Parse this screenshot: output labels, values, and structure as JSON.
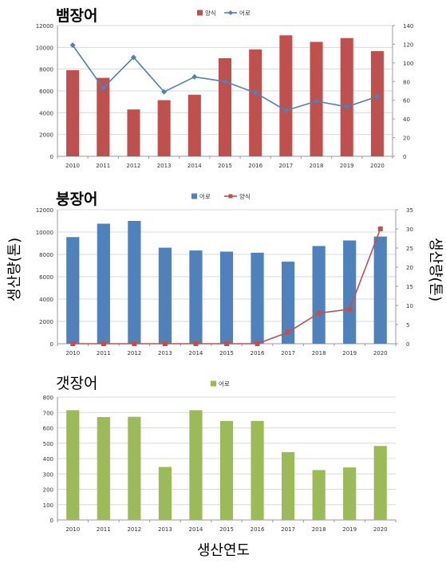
{
  "shared": {
    "y_axis_label": "생산량(톤)",
    "x_axis_label": "생산연도"
  },
  "chart_data": [
    {
      "type": "bar",
      "title": "뱀장어",
      "categories": [
        "2010",
        "2011",
        "2012",
        "2013",
        "2014",
        "2015",
        "2016",
        "2017",
        "2018",
        "2019",
        "2020"
      ],
      "ylim": [
        0,
        12000
      ],
      "yticks": [
        0,
        2000,
        4000,
        6000,
        8000,
        10000,
        12000
      ],
      "y2lim": [
        0,
        140
      ],
      "y2ticks": [
        0,
        20,
        40,
        60,
        80,
        100,
        120,
        140
      ],
      "legend_position": "top",
      "legend_order": [
        "양식",
        "어로"
      ],
      "series": [
        {
          "name": "양식",
          "kind": "bar",
          "axis": "left",
          "color": "#c0504d",
          "values": [
            7900,
            7200,
            4300,
            5150,
            5650,
            9000,
            9800,
            11100,
            10500,
            10850,
            9650
          ]
        },
        {
          "name": "어로",
          "kind": "line",
          "axis": "right",
          "color": "#4f81bd",
          "marker": "diamond",
          "values": [
            119,
            73,
            106,
            69,
            85,
            80,
            68,
            49,
            59,
            53,
            64
          ]
        }
      ]
    },
    {
      "type": "bar",
      "title": "붕장어",
      "categories": [
        "2010",
        "2011",
        "2012",
        "2013",
        "2014",
        "2015",
        "2016",
        "2017",
        "2018",
        "2019",
        "2020"
      ],
      "ylim": [
        0,
        12000
      ],
      "yticks": [
        0,
        2000,
        4000,
        6000,
        8000,
        10000,
        12000
      ],
      "y2lim": [
        0,
        35
      ],
      "y2ticks": [
        0,
        5,
        10,
        15,
        20,
        25,
        30,
        35
      ],
      "legend_position": "top",
      "legend_order": [
        "어로",
        "양식"
      ],
      "series": [
        {
          "name": "어로",
          "kind": "bar",
          "axis": "left",
          "color": "#4f81bd",
          "values": [
            9550,
            10750,
            11000,
            8600,
            8350,
            8250,
            8150,
            7350,
            8750,
            9250,
            9600
          ]
        },
        {
          "name": "양식",
          "kind": "line",
          "axis": "right",
          "color": "#c0504d",
          "marker": "square",
          "values": [
            0,
            0,
            0,
            0,
            0,
            0,
            0,
            3,
            8,
            9,
            30
          ]
        }
      ]
    },
    {
      "type": "bar",
      "title": "갯장어",
      "categories": [
        "2010",
        "2011",
        "2012",
        "2013",
        "2014",
        "2015",
        "2016",
        "2017",
        "2018",
        "2019",
        "2020"
      ],
      "ylim": [
        0,
        800
      ],
      "yticks": [
        0,
        100,
        200,
        300,
        400,
        500,
        600,
        700,
        800
      ],
      "legend_position": "top",
      "legend_order": [
        "어로"
      ],
      "series": [
        {
          "name": "어로",
          "kind": "bar",
          "axis": "left",
          "color": "#9bbb59",
          "values": [
            715,
            670,
            672,
            345,
            715,
            645,
            645,
            442,
            325,
            342,
            482
          ]
        }
      ]
    }
  ]
}
